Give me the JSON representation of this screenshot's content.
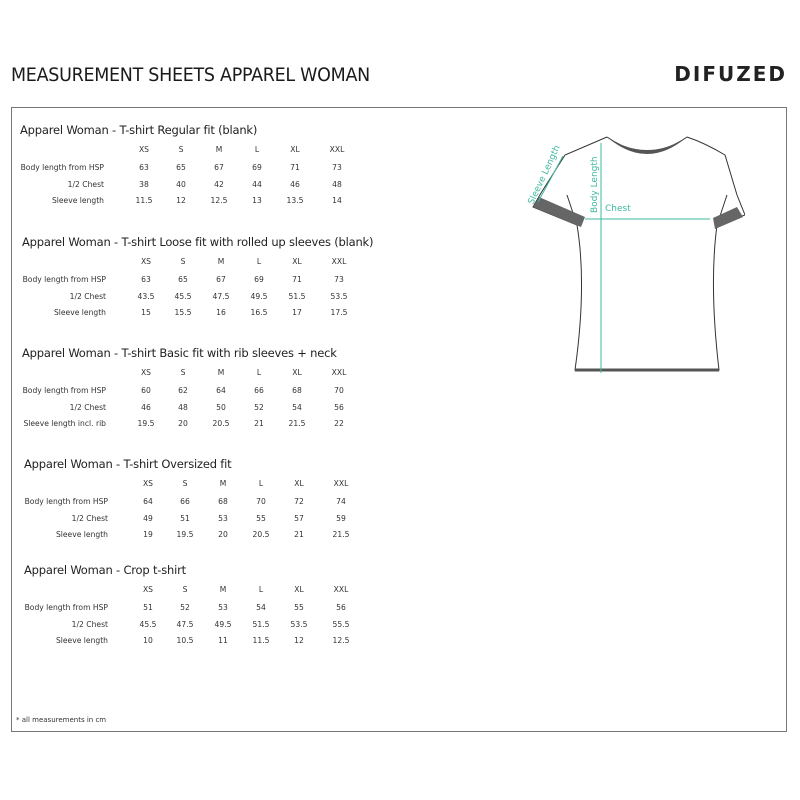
{
  "header": {
    "title": "MEASUREMENT SHEETS APPAREL WOMAN",
    "logo": "DIFUZED"
  },
  "sizes": [
    "XS",
    "S",
    "M",
    "L",
    "XL",
    "XXL"
  ],
  "sections": [
    {
      "title": "Apparel Woman - T-shirt Regular fit (blank)",
      "rows": [
        {
          "label": "Body length from HSP",
          "values": [
            "63",
            "65",
            "67",
            "69",
            "71",
            "73"
          ]
        },
        {
          "label": "1/2 Chest",
          "values": [
            "38",
            "40",
            "42",
            "44",
            "46",
            "48"
          ]
        },
        {
          "label": "Sleeve length",
          "values": [
            "11.5",
            "12",
            "12.5",
            "13",
            "13.5",
            "14"
          ]
        }
      ]
    },
    {
      "title": "Apparel Woman - T-shirt Loose fit with rolled up sleeves (blank)",
      "rows": [
        {
          "label": "Body length from HSP",
          "values": [
            "63",
            "65",
            "67",
            "69",
            "71",
            "73"
          ]
        },
        {
          "label": "1/2 Chest",
          "values": [
            "43.5",
            "45.5",
            "47.5",
            "49.5",
            "51.5",
            "53.5"
          ]
        },
        {
          "label": "Sleeve length",
          "values": [
            "15",
            "15.5",
            "16",
            "16.5",
            "17",
            "17.5"
          ]
        }
      ]
    },
    {
      "title": "Apparel Woman - T-shirt Basic fit with rib sleeves + neck",
      "rows": [
        {
          "label": "Body length from HSP",
          "values": [
            "60",
            "62",
            "64",
            "66",
            "68",
            "70"
          ]
        },
        {
          "label": "1/2 Chest",
          "values": [
            "46",
            "48",
            "50",
            "52",
            "54",
            "56"
          ]
        },
        {
          "label": "Sleeve length incl. rib",
          "values": [
            "19.5",
            "20",
            "20.5",
            "21",
            "21.5",
            "22"
          ]
        }
      ]
    },
    {
      "title": "Apparel Woman - T-shirt Oversized fit",
      "rows": [
        {
          "label": "Body length from HSP",
          "values": [
            "64",
            "66",
            "68",
            "70",
            "72",
            "74"
          ]
        },
        {
          "label": "1/2 Chest",
          "values": [
            "49",
            "51",
            "53",
            "55",
            "57",
            "59"
          ]
        },
        {
          "label": "Sleeve length",
          "values": [
            "19",
            "19.5",
            "20",
            "20.5",
            "21",
            "21.5"
          ]
        }
      ]
    },
    {
      "title": "Apparel Woman - Crop t-shirt",
      "rows": [
        {
          "label": "Body length from HSP",
          "values": [
            "51",
            "52",
            "53",
            "54",
            "55",
            "56"
          ]
        },
        {
          "label": "1/2 Chest",
          "values": [
            "45.5",
            "47.5",
            "49.5",
            "51.5",
            "53.5",
            "55.5"
          ]
        },
        {
          "label": "Sleeve length",
          "values": [
            "10",
            "10.5",
            "11",
            "11.5",
            "12",
            "12.5"
          ]
        }
      ]
    }
  ],
  "diagram": {
    "sleeve_label": "Sleeve Length",
    "body_label": "Body Length",
    "chest_label": "Chest",
    "accent": "#3fb8a0"
  },
  "footnote": "* all measurements in cm"
}
